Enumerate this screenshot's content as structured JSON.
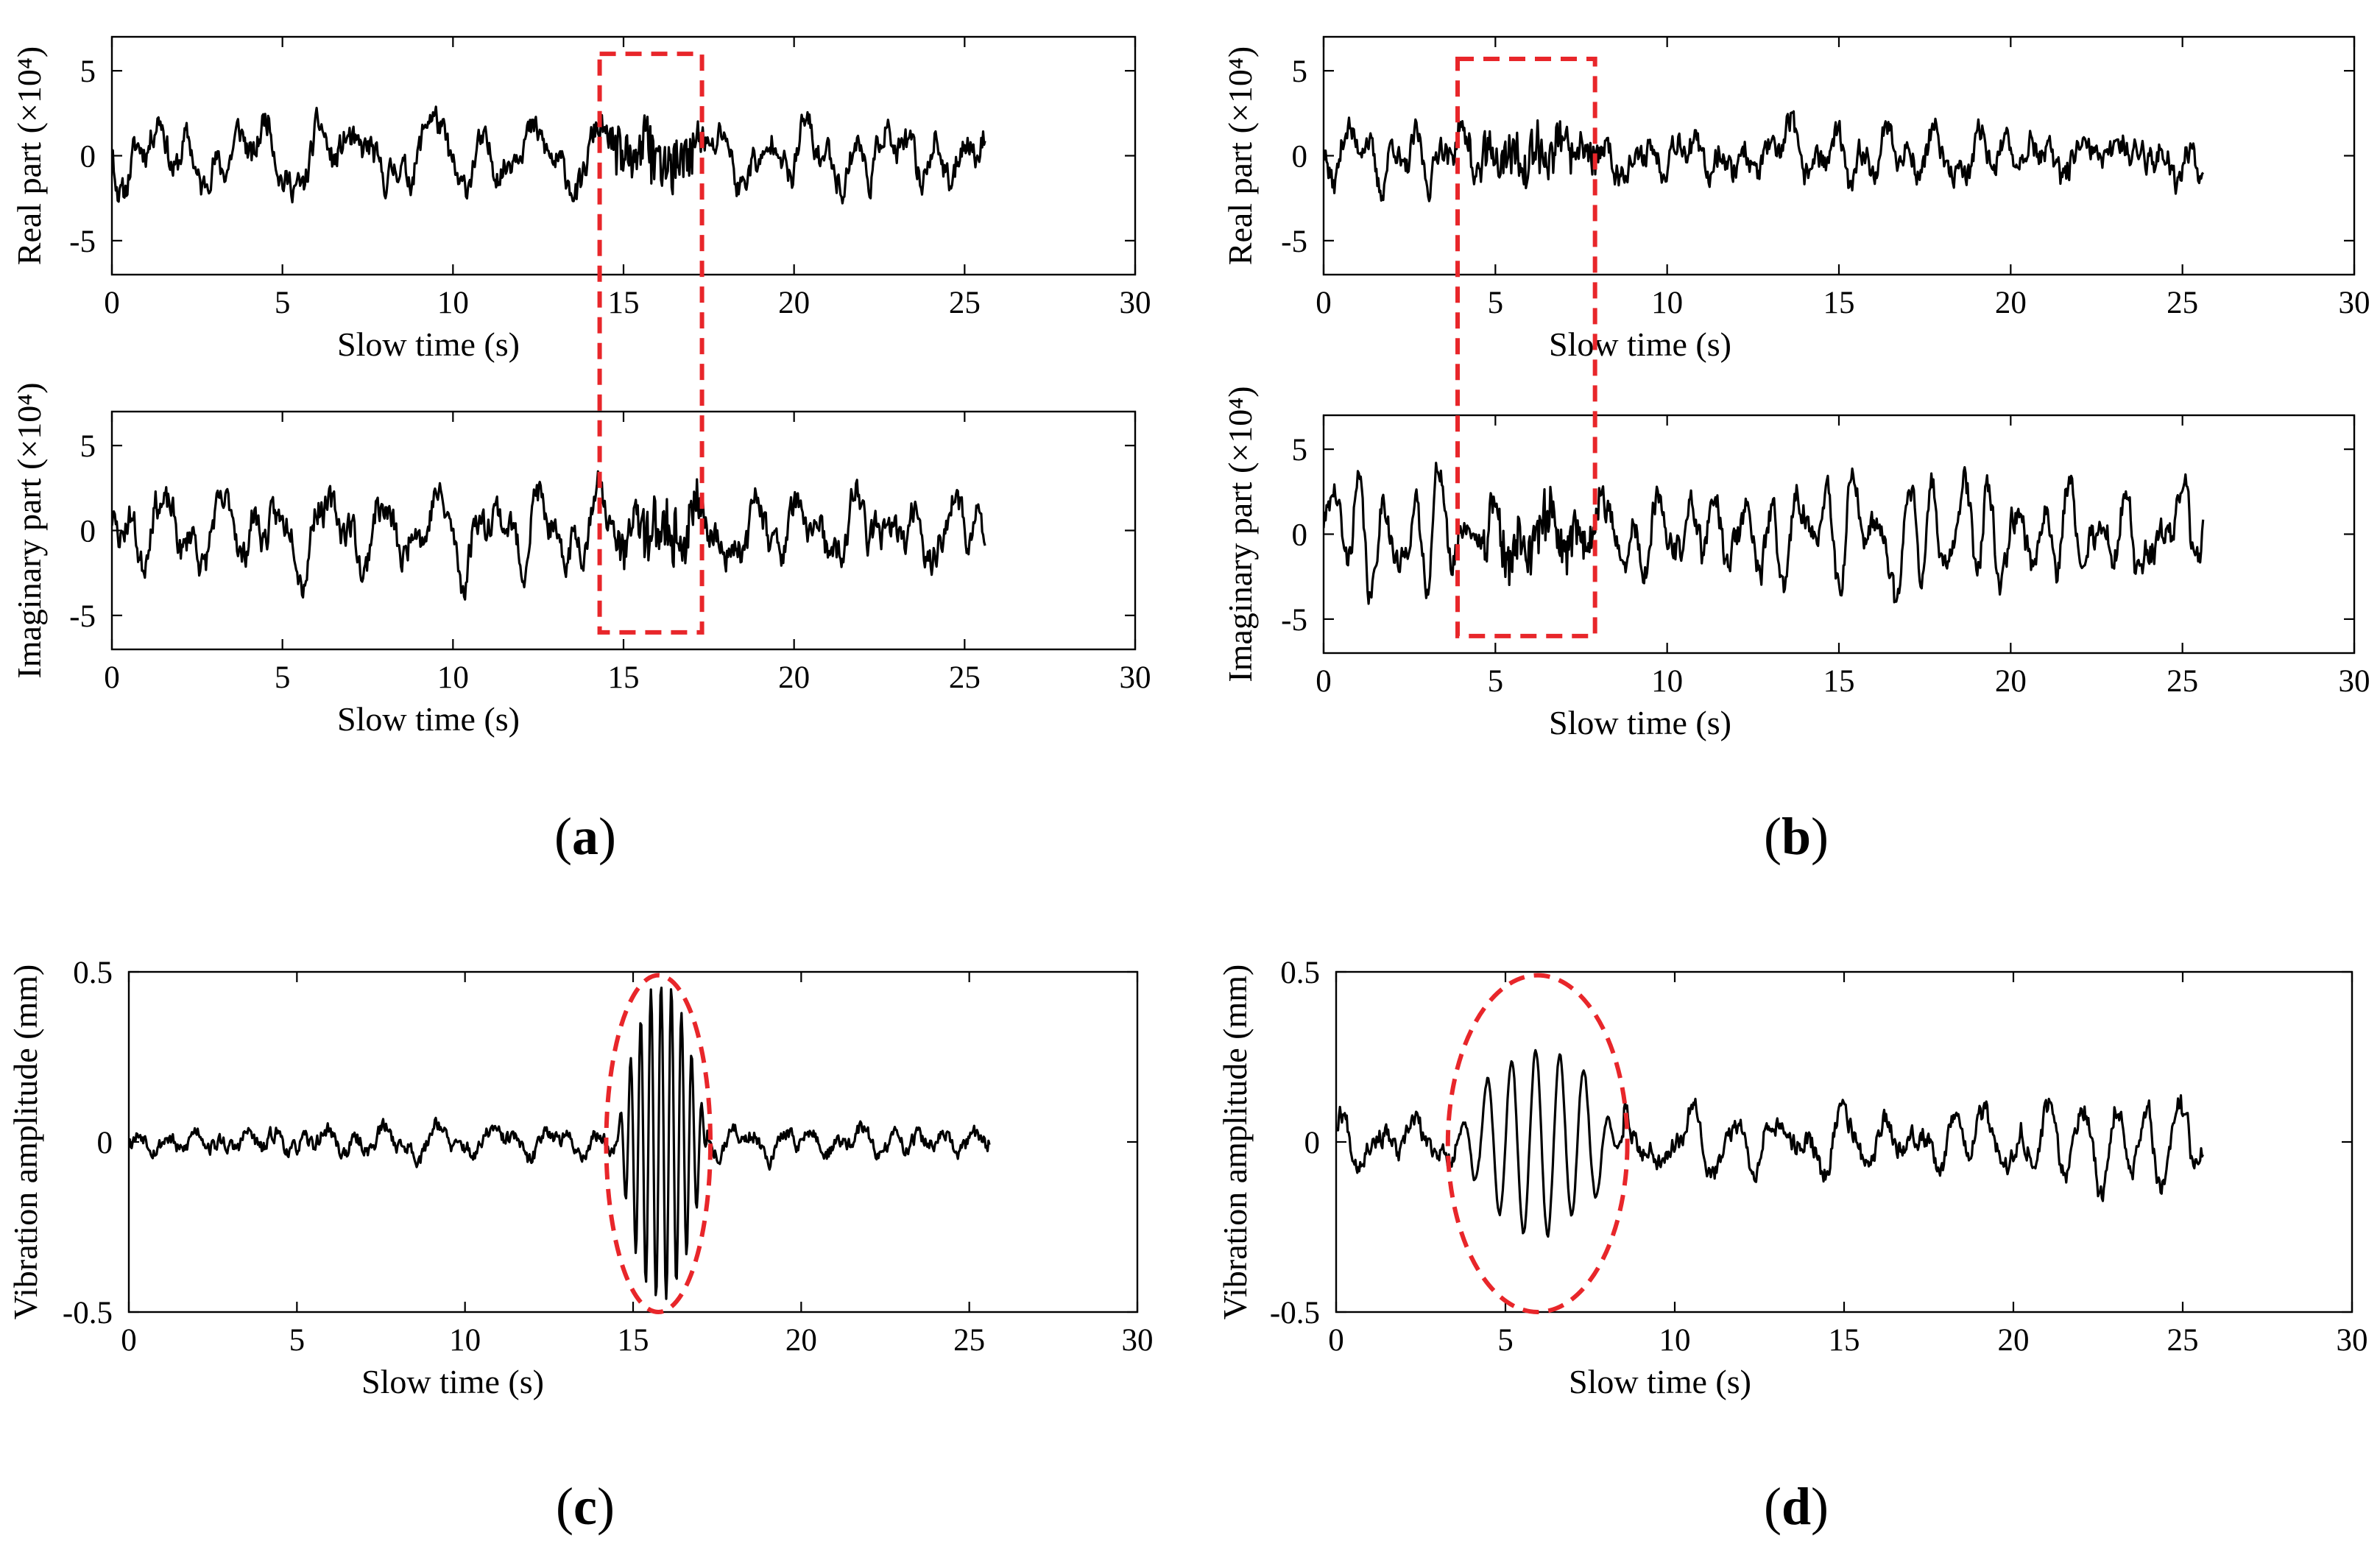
{
  "colors": {
    "line": "#000000",
    "highlight": "#e8262a",
    "background": "#ffffff"
  },
  "chart_data": [
    {
      "id": "a-real",
      "panel": "a",
      "type": "line",
      "xlabel": "Slow time (s)",
      "ylabel": "Real part (×10⁴)",
      "xlim": [
        0,
        30
      ],
      "ylim": [
        -7,
        7
      ],
      "xticks": [
        0,
        5,
        10,
        15,
        20,
        25,
        30
      ],
      "yticks": [
        -5,
        0,
        5
      ],
      "series": [
        {
          "name": "real",
          "seed": 11,
          "t_end": 25.6,
          "base": 1.7,
          "burst": [
            14.5,
            17.3,
            1.6,
            1.9
          ],
          "offset": 0
        }
      ],
      "highlight": {
        "shape": "rect",
        "t": [
          14.3,
          17.3
        ],
        "y": [
          -7,
          6
        ],
        "note": "box continues to next panel"
      }
    },
    {
      "id": "a-imag",
      "panel": "a",
      "type": "line",
      "xlabel": "Slow time (s)",
      "ylabel": "Imaginary part (×10⁴)",
      "xlim": [
        0,
        30
      ],
      "ylim": [
        -7,
        7
      ],
      "xticks": [
        0,
        5,
        10,
        15,
        20,
        25,
        30
      ],
      "yticks": [
        -5,
        0,
        5
      ],
      "series": [
        {
          "name": "imaginary",
          "seed": 23,
          "t_end": 25.6,
          "base": 1.8,
          "burst": [
            14.5,
            17.3,
            1.6,
            1.9
          ],
          "offset": 0
        }
      ],
      "highlight": {
        "shape": "rect",
        "t": [
          14.3,
          17.3
        ],
        "y": [
          -6,
          7
        ]
      }
    },
    {
      "id": "b-real",
      "panel": "b",
      "type": "line",
      "xlabel": "Slow time (s)",
      "ylabel": "Real part (×10⁴)",
      "xlim": [
        0,
        30
      ],
      "ylim": [
        -7,
        7
      ],
      "xticks": [
        0,
        5,
        10,
        15,
        20,
        25,
        30
      ],
      "yticks": [
        -5,
        0,
        5
      ],
      "series": [
        {
          "name": "real",
          "seed": 37,
          "t_end": 25.6,
          "base": 1.6,
          "burst": [
            4.0,
            8.0,
            1.3,
            2.0
          ],
          "offset": 0
        }
      ],
      "highlight": {
        "shape": "rect",
        "t": [
          3.9,
          7.9
        ],
        "y": [
          -7,
          5.7
        ]
      }
    },
    {
      "id": "b-imag",
      "panel": "b",
      "type": "line",
      "xlabel": "Slow time (s)",
      "ylabel": "Imaginary part (×10⁴)",
      "xlim": [
        0,
        30
      ],
      "ylim": [
        -7,
        7
      ],
      "xticks": [
        0,
        5,
        10,
        15,
        20,
        25,
        30
      ],
      "yticks": [
        -5,
        0,
        5
      ],
      "series": [
        {
          "name": "imaginary",
          "seed": 41,
          "t_end": 25.6,
          "base": 1.8,
          "burst": [
            4.0,
            8.0,
            1.3,
            2.0
          ],
          "offset": 0
        }
      ],
      "highlight": {
        "shape": "rect",
        "t": [
          3.9,
          7.9
        ],
        "y": [
          -6,
          7
        ]
      }
    },
    {
      "id": "c-vib",
      "panel": "c",
      "type": "line",
      "xlabel": "Slow time (s)",
      "ylabel": "Vibration amplitude (mm)",
      "xlim": [
        0,
        30
      ],
      "ylim": [
        -0.5,
        0.5
      ],
      "xticks": [
        0,
        5,
        10,
        15,
        20,
        25,
        30
      ],
      "yticks": [
        -0.5,
        0,
        0.5
      ],
      "series": [
        {
          "name": "vibration",
          "seed": 53,
          "t_end": 25.6,
          "base": 0.045,
          "burst": [
            14.5,
            17.2,
            0.47,
            3.3
          ],
          "offset": 0
        }
      ],
      "highlight": {
        "shape": "ellipse",
        "t": [
          14.2,
          17.3
        ],
        "y": [
          -0.5,
          0.49
        ]
      }
    },
    {
      "id": "d-vib",
      "panel": "d",
      "type": "line",
      "xlabel": "Slow time (s)",
      "ylabel": "Vibration amplitude (mm)",
      "xlim": [
        0,
        30
      ],
      "ylim": [
        -0.5,
        0.5
      ],
      "xticks": [
        0,
        5,
        10,
        15,
        20,
        25,
        30
      ],
      "yticks": [
        -0.5,
        0,
        0.5
      ],
      "series": [
        {
          "name": "vibration",
          "seed": 67,
          "t_end": 25.6,
          "base": 0.06,
          "burst": [
            3.5,
            8.5,
            0.27,
            1.4
          ],
          "offset": 0,
          "ramp": [
            16.0,
            25.6,
            0.18
          ]
        }
      ],
      "highlight": {
        "shape": "ellipse",
        "t": [
          3.3,
          8.6
        ],
        "y": [
          -0.5,
          0.49
        ]
      }
    }
  ],
  "panel_labels": [
    {
      "panel": "a",
      "open": "(",
      "letter": "a",
      "close": ")"
    },
    {
      "panel": "b",
      "open": "(",
      "letter": "b",
      "close": ")"
    },
    {
      "panel": "c",
      "open": "(",
      "letter": "c",
      "close": ")"
    },
    {
      "panel": "d",
      "open": "(",
      "letter": "d",
      "close": ")"
    }
  ]
}
